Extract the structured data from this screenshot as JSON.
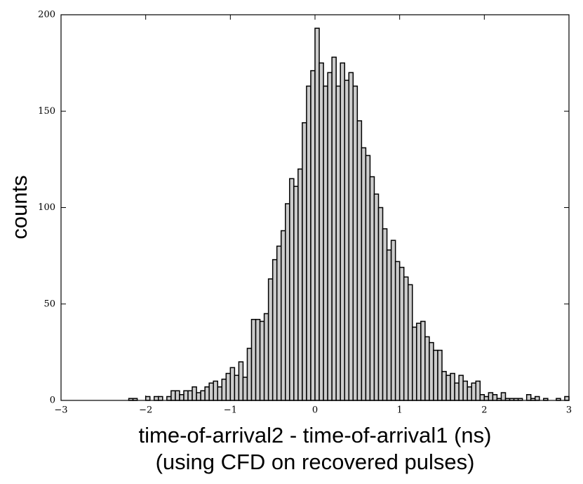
{
  "chart_data": {
    "type": "histogram",
    "xlabel": [
      "time-of-arrival2 - time-of-arrival1 (ns)",
      "(using CFD on recovered pulses)"
    ],
    "ylabel": "counts",
    "color": "#cccccc",
    "edgecolor": "#000000",
    "bins": [
      -3,
      -2.95,
      -2.9,
      -2.85,
      -2.8,
      -2.75,
      -2.7,
      -2.65,
      -2.6,
      -2.55,
      -2.5,
      -2.45,
      -2.4,
      -2.35,
      -2.3,
      -2.25,
      -2.2,
      -2.15,
      -2.1,
      -2.05,
      -2,
      -1.95,
      -1.9,
      -1.85,
      -1.8,
      -1.75,
      -1.7,
      -1.65,
      -1.6,
      -1.55,
      -1.5,
      -1.45,
      -1.4,
      -1.35,
      -1.3,
      -1.25,
      -1.2,
      -1.15,
      -1.1,
      -1.05,
      -1,
      -0.95,
      -0.9,
      -0.85,
      -0.8,
      -0.75,
      -0.7,
      -0.65,
      -0.6,
      -0.55,
      -0.5,
      -0.45,
      -0.4,
      -0.35,
      -0.3,
      -0.25,
      -0.2,
      -0.15,
      -0.1,
      -0.05,
      0,
      0.05,
      0.1,
      0.15,
      0.2,
      0.25,
      0.3,
      0.35,
      0.4,
      0.45,
      0.5,
      0.55,
      0.6,
      0.65,
      0.7,
      0.75,
      0.8,
      0.85,
      0.9,
      0.95,
      1,
      1.05,
      1.1,
      1.15,
      1.2,
      1.25,
      1.3,
      1.35,
      1.4,
      1.45,
      1.5,
      1.55,
      1.6,
      1.65,
      1.7,
      1.75,
      1.8,
      1.85,
      1.9,
      1.95,
      2,
      2.05,
      2.1,
      2.15,
      2.2,
      2.25,
      2.3,
      2.35,
      2.4,
      2.45,
      2.5,
      2.55,
      2.6,
      2.65,
      2.7,
      2.75,
      2.8,
      2.85,
      2.9,
      2.95,
      3
    ],
    "values": [
      0,
      0,
      0,
      0,
      0,
      0,
      0,
      0,
      0,
      0,
      0,
      0,
      0,
      0,
      0,
      0,
      1,
      1,
      0,
      0,
      2,
      0,
      2,
      2,
      0,
      2,
      5,
      5,
      3,
      5,
      5,
      7,
      4,
      5,
      7,
      9,
      10,
      7,
      11,
      14,
      17,
      13,
      20,
      12,
      27,
      42,
      42,
      41,
      45,
      63,
      73,
      80,
      88,
      102,
      115,
      111,
      120,
      144,
      163,
      171,
      193,
      175,
      163,
      170,
      178,
      163,
      175,
      166,
      170,
      163,
      145,
      131,
      127,
      116,
      107,
      100,
      89,
      78,
      83,
      72,
      69,
      64,
      60,
      38,
      40,
      41,
      33,
      30,
      26,
      26,
      15,
      13,
      14,
      9,
      13,
      10,
      7,
      9,
      10,
      3,
      2,
      4,
      3,
      1,
      4,
      1,
      1,
      1,
      1,
      0,
      3,
      1,
      2,
      0,
      1,
      0,
      0,
      1,
      0,
      2
    ],
    "xlim": [
      -3,
      3
    ],
    "ylim": [
      0,
      200
    ],
    "xticks": [
      {
        "value": -3,
        "label": "−3"
      },
      {
        "value": -2,
        "label": "−2"
      },
      {
        "value": -1,
        "label": "−1"
      },
      0,
      1,
      2,
      3
    ],
    "yticks": [
      0,
      50,
      100,
      150,
      200
    ]
  }
}
